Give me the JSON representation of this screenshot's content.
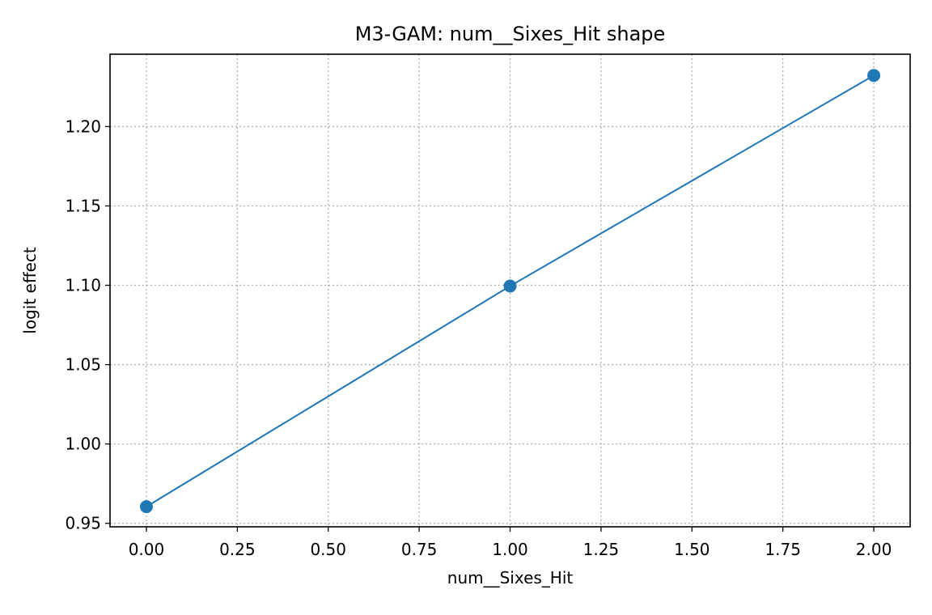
{
  "chart_data": {
    "type": "line",
    "title": "M3-GAM: num__Sixes_Hit shape",
    "xlabel": "num__Sixes_Hit",
    "ylabel": "logit effect",
    "xlim": [
      -0.1,
      2.1
    ],
    "ylim": [
      0.9478,
      1.2456
    ],
    "x_ticks": [
      0.0,
      0.25,
      0.5,
      0.75,
      1.0,
      1.25,
      1.5,
      1.75,
      2.0
    ],
    "x_tick_labels": [
      "0.00",
      "0.25",
      "0.50",
      "0.75",
      "1.00",
      "1.25",
      "1.50",
      "1.75",
      "2.00"
    ],
    "y_ticks": [
      0.95,
      1.0,
      1.05,
      1.1,
      1.15,
      1.2
    ],
    "y_tick_labels": [
      "0.95",
      "1.00",
      "1.05",
      "1.10",
      "1.15",
      "1.20"
    ],
    "grid": true,
    "series": [
      {
        "x": [
          0,
          1,
          2
        ],
        "y": [
          0.9605,
          1.0995,
          1.2322
        ],
        "color": "#1f77b4",
        "marker": "circle"
      }
    ]
  }
}
